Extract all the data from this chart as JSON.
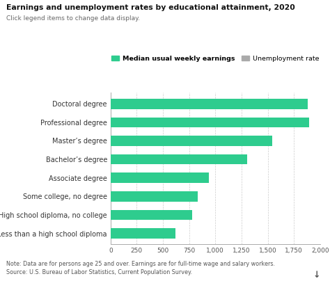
{
  "title": "Earnings and unemployment rates by educational attainment, 2020",
  "subtitle": "Click legend items to change data display.",
  "categories": [
    "Less than a high school diploma",
    "High school diploma, no college",
    "Some college, no degree",
    "Associate degree",
    "Bachelor’s degree",
    "Master’s degree",
    "Professional degree",
    "Doctoral degree"
  ],
  "earnings": [
    619,
    781,
    833,
    938,
    1305,
    1545,
    1893,
    1885
  ],
  "bar_color": "#2ecc8e",
  "unemployment_color": "#aaaaaa",
  "background_color": "#ffffff",
  "xlim": [
    0,
    2000
  ],
  "xticks": [
    0,
    250,
    500,
    750,
    1000,
    1250,
    1500,
    1750,
    2000
  ],
  "legend_earnings_label": "Median usual weekly earnings",
  "legend_unemployment_label": "Unemployment rate",
  "note": "Note: Data are for persons age 25 and over. Earnings are for full-time wage and salary workers.",
  "source": "Source: U.S. Bureau of Labor Statistics, Current Population Survey."
}
